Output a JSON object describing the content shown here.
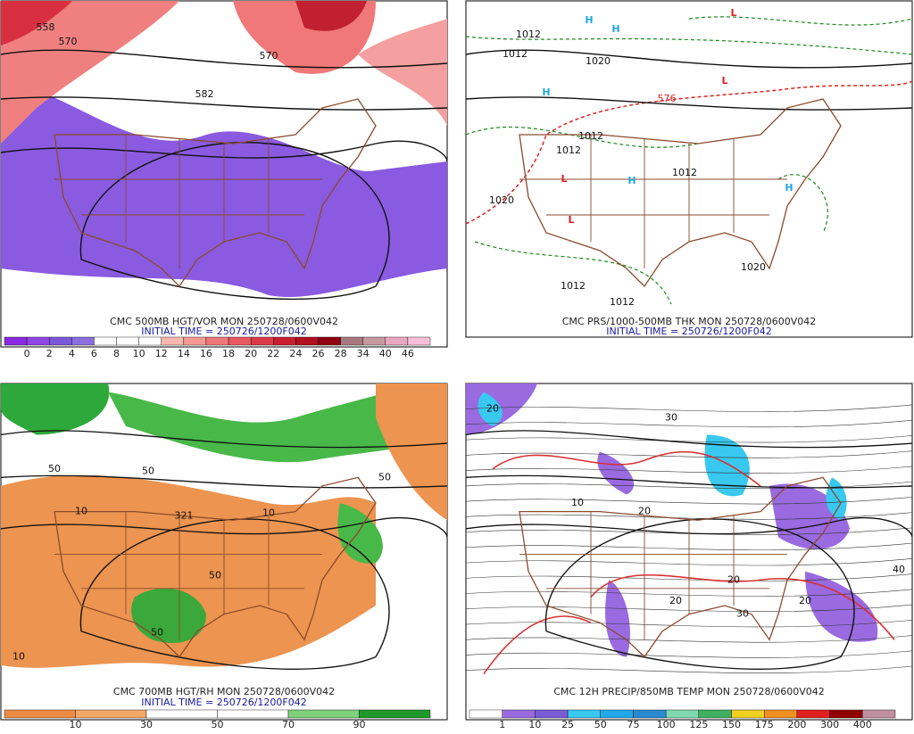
{
  "panels": [
    {
      "title": "CMC 500MB HGT/VOR MON 250728/0600V042",
      "subtitle": "INITIAL TIME = 250726/1200F042",
      "map_labels": [
        "558",
        "570",
        "570",
        "582"
      ],
      "colorbar": {
        "labels": [
          0,
          2,
          4,
          6,
          8,
          10,
          12,
          14,
          16,
          18,
          20,
          22,
          24,
          26,
          28,
          34,
          40,
          46
        ],
        "colors": [
          "#8a2be2",
          "#9146e6",
          "#7b57d9",
          "#8c6fe0",
          "#ffffff",
          "#ffffff",
          "#ffffff",
          "#f7b8b0",
          "#f49a92",
          "#f0787a",
          "#e85a62",
          "#dc3a48",
          "#c81e30",
          "#b01020",
          "#900010",
          "#a87880",
          "#c49aa0",
          "#e8a8c0",
          "#f8c0d8"
        ]
      }
    },
    {
      "title": "CMC PRS/1000-500MB THK MON 250728/0600V042",
      "subtitle": "INITIAL TIME = 250726/1200F042",
      "map_labels": [
        "1012",
        "1012",
        "1020",
        "1012",
        "1012",
        "1012",
        "1020",
        "1020",
        "1012",
        "1012",
        "576",
        "H",
        "H",
        "H",
        "H",
        "H",
        "L",
        "L",
        "L",
        "L"
      ]
    },
    {
      "title": "CMC 700MB HGT/RH MON 250728/0600V042",
      "subtitle": "INITIAL TIME = 250726/1200F042",
      "map_labels": [
        "50",
        "10",
        "50",
        "321",
        "10",
        "50",
        "10",
        "50",
        "50"
      ],
      "colorbar": {
        "labels": [
          10,
          30,
          50,
          70,
          90
        ],
        "colors": [
          "#ec8c44",
          "#f4a868",
          "#ffffff",
          "#ffffff",
          "#7ed07a",
          "#1e9a2a"
        ]
      }
    },
    {
      "title": "CMC 12H PRECIP/850MB TEMP MON 250728/0600V042",
      "subtitle": "",
      "map_labels": [
        "20",
        "10",
        "20",
        "30",
        "20",
        "20",
        "40",
        "30",
        "20"
      ],
      "colorbar": {
        "labels": [
          1,
          10,
          25,
          50,
          75,
          100,
          125,
          150,
          175,
          200,
          300,
          400
        ],
        "colors": [
          "#ffffff",
          "#9a6ae0",
          "#7a5cd6",
          "#38c8f0",
          "#20a8e8",
          "#2a8ad0",
          "#80d8b0",
          "#40b060",
          "#f0d020",
          "#f09020",
          "#e02020",
          "#900000",
          "#c090a0"
        ]
      }
    }
  ]
}
